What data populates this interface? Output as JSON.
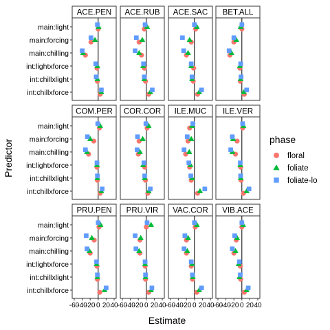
{
  "chart_data": {
    "type": "scatter",
    "xlabel": "Estimate",
    "ylabel": "Predictor",
    "xlim": [
      -60,
      40
    ],
    "xticks": [
      -60,
      -40,
      -20,
      0,
      20,
      40
    ],
    "xtick_labels": [
      "-60",
      "-40",
      "-20",
      "0",
      "20",
      "40"
    ],
    "predictors": [
      "main:light",
      "main:forcing",
      "main:chilling",
      "int:lightxforce",
      "int:chillxlight",
      "int:chillxforce"
    ],
    "legend": {
      "title": "phase",
      "position": "right",
      "entries": [
        {
          "name": "floral",
          "color": "#F8766D",
          "shape": "circle"
        },
        {
          "name": "foliate",
          "color": "#00BA38",
          "shape": "triangle"
        },
        {
          "name": "foliate-lo",
          "color": "#619CFF",
          "shape": "square"
        }
      ]
    },
    "panels": [
      {
        "title": "ACE.PEN",
        "series": {
          "floral": [
            0,
            -18,
            -32,
            -3,
            -2,
            5
          ],
          "foliate": [
            1,
            -8,
            -38,
            -2,
            -2,
            8
          ],
          "foliate-lo": [
            -2,
            -18,
            -40,
            -6,
            -5,
            8
          ]
        }
      },
      {
        "title": "ACE.RUB",
        "series": {
          "floral": [
            -5,
            -18,
            -12,
            -5,
            -2,
            6
          ],
          "foliate": [
            2,
            -10,
            -18,
            -8,
            -5,
            10
          ],
          "foliate-lo": [
            -3,
            -25,
            -28,
            -7,
            -5,
            15
          ]
        }
      },
      {
        "title": "ACE.SAC",
        "series": {
          "floral": [
            3,
            -8,
            -20,
            -2,
            -3,
            8
          ],
          "foliate": [
            6,
            -12,
            -16,
            -8,
            -6,
            12
          ],
          "foliate-lo": [
            0,
            -30,
            -27,
            -8,
            -6,
            18
          ]
        }
      },
      {
        "title": "BET.ALL",
        "series": {
          "floral": [
            0,
            -20,
            -30,
            -5,
            -4,
            6
          ],
          "foliate": [
            -3,
            -14,
            -26,
            -5,
            -3,
            5
          ],
          "foliate-lo": [
            0,
            -20,
            -32,
            -3,
            -2,
            12
          ]
        }
      },
      {
        "title": "COM.PER",
        "series": {
          "floral": [
            3,
            -11,
            -24,
            -3,
            -2,
            5
          ],
          "foliate": [
            5,
            -20,
            -28,
            -3,
            -2,
            8
          ],
          "foliate-lo": [
            -1,
            -27,
            -32,
            -3,
            -2,
            10
          ]
        }
      },
      {
        "title": "COR.COR",
        "series": {
          "floral": [
            2,
            -18,
            -20,
            -4,
            -2,
            4
          ],
          "foliate": [
            6,
            -9,
            -16,
            -8,
            -4,
            6
          ],
          "foliate-lo": [
            -1,
            -22,
            -23,
            -6,
            -4,
            10
          ]
        }
      },
      {
        "title": "ILE.MUC",
        "series": {
          "floral": [
            -12,
            -16,
            -22,
            -12,
            -8,
            8
          ],
          "foliate": [
            -6,
            -8,
            -13,
            -10,
            -6,
            14
          ],
          "foliate-lo": [
            -4,
            -18,
            -26,
            -14,
            -9,
            26
          ]
        }
      },
      {
        "title": "ILE.VER",
        "series": {
          "floral": [
            2,
            -12,
            -16,
            -3,
            -2,
            4
          ],
          "foliate": [
            4,
            -22,
            -24,
            -4,
            -3,
            12
          ],
          "foliate-lo": [
            2,
            -24,
            -28,
            -4,
            -3,
            18
          ]
        }
      },
      {
        "title": "PRU.PEN",
        "series": {
          "floral": [
            2,
            -10,
            -20,
            -3,
            -2,
            4
          ],
          "foliate": [
            6,
            -16,
            -22,
            -4,
            -2,
            16
          ],
          "foliate-lo": [
            0,
            -30,
            -28,
            -4,
            -2,
            20
          ]
        }
      },
      {
        "title": "PRU.VIR",
        "series": {
          "floral": [
            0,
            -16,
            -16,
            -3,
            -2,
            6
          ],
          "foliate": [
            12,
            -14,
            -18,
            -3,
            -2,
            12
          ],
          "foliate-lo": [
            2,
            -28,
            -26,
            -3,
            -2,
            14
          ]
        }
      },
      {
        "title": "VAC.COR",
        "series": {
          "floral": [
            2,
            -20,
            -20,
            -8,
            -5,
            6
          ],
          "foliate": [
            6,
            -16,
            -18,
            -6,
            -4,
            12
          ],
          "foliate-lo": [
            0,
            -24,
            -26,
            -8,
            -5,
            18
          ]
        }
      },
      {
        "title": "VIB.ACE",
        "series": {
          "floral": [
            0,
            -14,
            -20,
            -4,
            -3,
            6
          ],
          "foliate": [
            3,
            -12,
            -16,
            -8,
            -6,
            12
          ],
          "foliate-lo": [
            0,
            -18,
            -24,
            -6,
            -4,
            16
          ]
        }
      }
    ]
  }
}
